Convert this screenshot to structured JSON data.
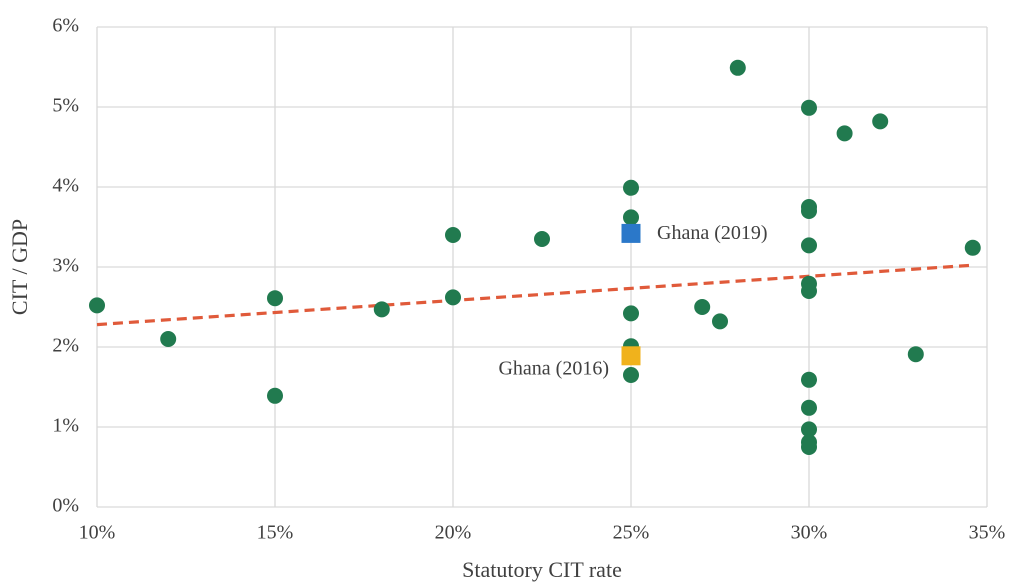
{
  "chart_data": {
    "type": "scatter",
    "x_label": "Statutory CIT rate",
    "y_label": "CIT / GDP",
    "xlim": [
      10,
      35
    ],
    "ylim": [
      0,
      6
    ],
    "xticks": [
      {
        "value": 10,
        "label": "10%"
      },
      {
        "value": 15,
        "label": "15%"
      },
      {
        "value": 20,
        "label": "20%"
      },
      {
        "value": 25,
        "label": "25%"
      },
      {
        "value": 30,
        "label": "30%"
      },
      {
        "value": 35,
        "label": "35%"
      }
    ],
    "yticks": [
      {
        "value": 0,
        "label": "0%"
      },
      {
        "value": 1,
        "label": "1%"
      },
      {
        "value": 2,
        "label": "2%"
      },
      {
        "value": 3,
        "label": "3%"
      },
      {
        "value": 4,
        "label": "4%"
      },
      {
        "value": 5,
        "label": "5%"
      },
      {
        "value": 6,
        "label": "6%"
      }
    ],
    "grid": true,
    "series": [
      {
        "color": "#217a4f",
        "marker": "circle",
        "x": [
          10,
          12,
          15,
          15,
          18,
          20,
          20,
          22.5,
          25,
          25,
          25,
          25,
          25,
          27,
          27.5,
          28,
          30,
          30,
          30,
          30,
          30,
          30,
          30,
          30,
          30,
          30,
          30,
          31,
          32,
          33,
          34.6
        ],
        "values": [
          2.52,
          2.1,
          2.61,
          1.39,
          2.47,
          3.4,
          2.62,
          3.35,
          3.99,
          3.62,
          2.42,
          2.01,
          1.65,
          2.5,
          2.32,
          5.49,
          4.99,
          3.75,
          3.7,
          3.27,
          2.79,
          2.7,
          1.59,
          1.24,
          0.97,
          0.81,
          0.75,
          4.67,
          4.82,
          1.91,
          3.24
        ]
      },
      {
        "name": "Ghana (2019)",
        "color": "#2b78c9",
        "marker": "square",
        "x": [
          25
        ],
        "values": [
          3.42
        ]
      },
      {
        "name": "Ghana (2016)",
        "color": "#f0b21c",
        "marker": "square",
        "x": [
          25
        ],
        "values": [
          1.89
        ]
      }
    ],
    "trendline": {
      "x": [
        10,
        34.5
      ],
      "values": [
        2.28,
        3.02
      ],
      "color": "#e05a3a",
      "dash": true
    }
  }
}
